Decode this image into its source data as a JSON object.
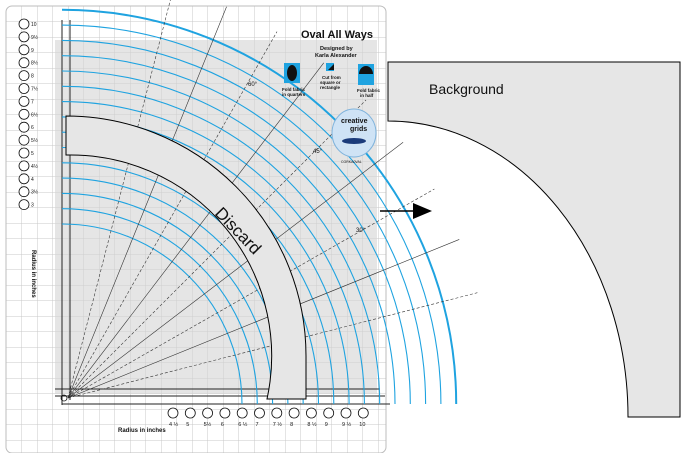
{
  "title": "Oval All Ways",
  "designer": [
    "Designed by",
    "Karla Alexander"
  ],
  "instructions": {
    "fold_quarters": [
      "Fold fabric",
      "in quarters"
    ],
    "cut_from": [
      "Cut from",
      "square or",
      "rectangle"
    ],
    "fold_half": [
      "Fold fabric",
      "in half"
    ]
  },
  "brand": [
    "creative",
    "grids"
  ],
  "brand_code": "CGRKA0VAL",
  "discard_label": "Discard",
  "background_label": "Background",
  "axis_left_label": "Radius in inches",
  "axis_bottom_label": "Radius in inches",
  "angle_labels": [
    "60°",
    "45°",
    "30°"
  ],
  "radii": [
    "3",
    "3½",
    "4",
    "4½",
    "5",
    "5½",
    "6",
    "6½",
    "7",
    "7½",
    "8",
    "8½",
    "9",
    "9½",
    "10"
  ],
  "radius_labels_bottom": [
    "4 ½",
    "5",
    "5½",
    "6",
    "6 ½",
    "7",
    "7 ½",
    "8",
    "8 ½",
    "9",
    "9 ½",
    "10"
  ],
  "colors": {
    "grid": "#c9c9c9",
    "ruler_gray": "#dcdcdc",
    "curve_blue": "#1fa3e0",
    "shape_fill": "#e6e6e6",
    "outline": "#000000"
  }
}
